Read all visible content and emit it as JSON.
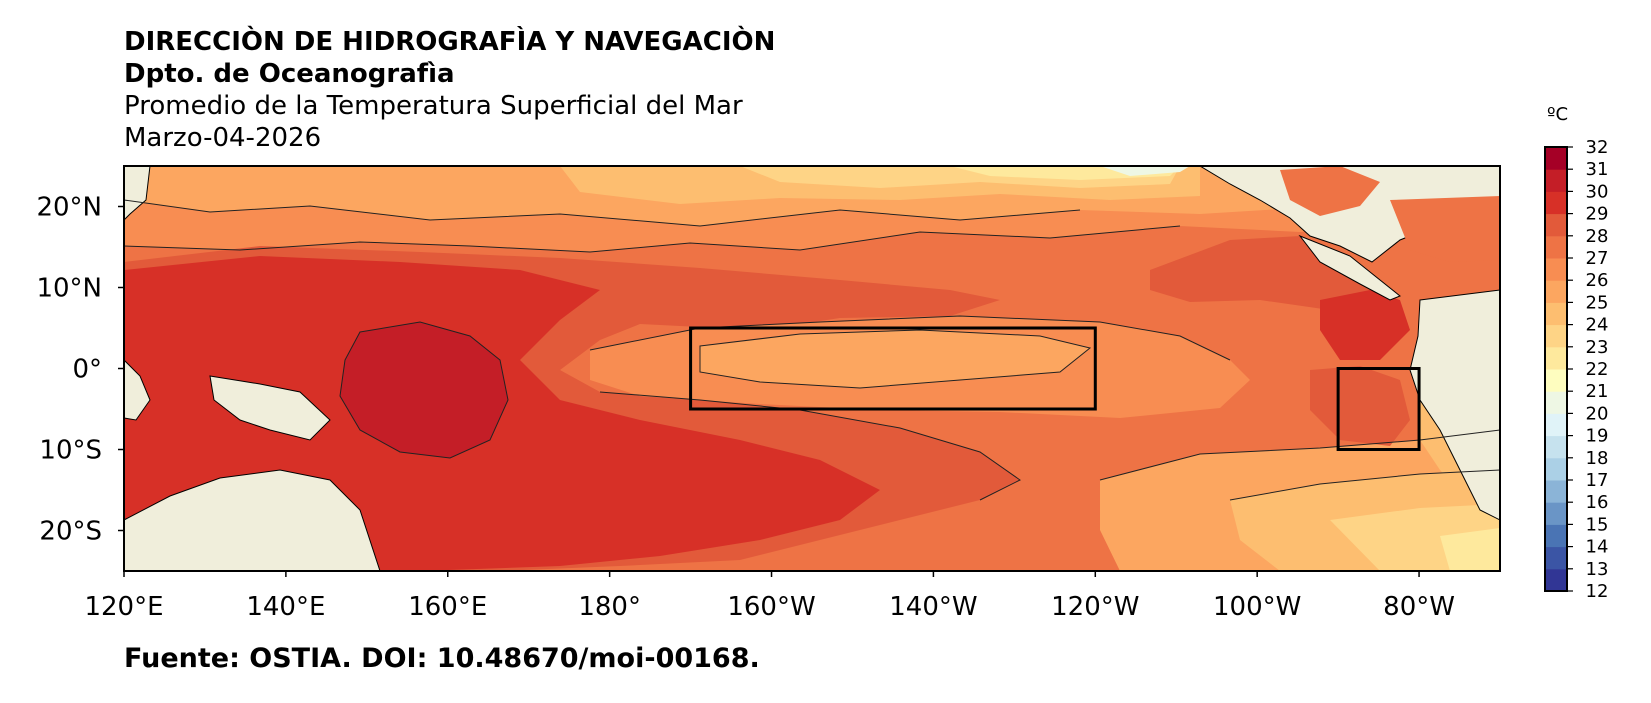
{
  "header": {
    "line1": "DIRECCIÒN DE HIDROGRAFÌA Y NAVEGACIÒN",
    "line2": "Dpto. de Oceanografìa",
    "line3": "Promedio de la Temperatura Superficial del Mar",
    "line4": "Marzo-04-2026"
  },
  "source": "Fuente: OSTIA. DOI: 10.48670/moi-00168.",
  "map": {
    "lon_range": [
      120,
      290
    ],
    "lat_range": [
      -25,
      25
    ],
    "lat_ticks": [
      {
        "value": 20,
        "label": "20°N"
      },
      {
        "value": 10,
        "label": "10°N"
      },
      {
        "value": 0,
        "label": "0°"
      },
      {
        "value": -10,
        "label": "10°S"
      },
      {
        "value": -20,
        "label": "20°S"
      }
    ],
    "lon_ticks": [
      {
        "value": 120,
        "label": "120°E"
      },
      {
        "value": 140,
        "label": "140°E"
      },
      {
        "value": 160,
        "label": "160°E"
      },
      {
        "value": 180,
        "label": "180°"
      },
      {
        "value": 200,
        "label": "160°W"
      },
      {
        "value": 220,
        "label": "140°W"
      },
      {
        "value": 240,
        "label": "120°W"
      },
      {
        "value": 260,
        "label": "100°W"
      },
      {
        "value": 280,
        "label": "80°W"
      }
    ],
    "boxes": [
      {
        "lon": [
          190,
          240
        ],
        "lat": [
          -5,
          5
        ]
      },
      {
        "lon": [
          270,
          280
        ],
        "lat": [
          -10,
          0
        ]
      }
    ]
  },
  "colorbar": {
    "unit": "ºC",
    "min": 12,
    "max": 32,
    "labels": [
      "12",
      "13",
      "14",
      "15",
      "16",
      "17",
      "18",
      "19",
      "20",
      "21",
      "22",
      "23",
      "24",
      "25",
      "26",
      "27",
      "28",
      "29",
      "30",
      "31",
      "32"
    ],
    "colors": [
      "#313695",
      "#3b55a5",
      "#4a74b4",
      "#6a95c6",
      "#8bb4d7",
      "#abd0e6",
      "#c6e2ee",
      "#e0f3f8",
      "#eef7e4",
      "#fefdbf",
      "#fee99d",
      "#fed486",
      "#fdbe70",
      "#fca660",
      "#f88d52",
      "#ee7345",
      "#e25a3a",
      "#d73027",
      "#c41e27",
      "#a50026"
    ]
  },
  "colors": {
    "land": "#f0eedb",
    "water_base": "#ee7345",
    "frame": "#000000"
  }
}
